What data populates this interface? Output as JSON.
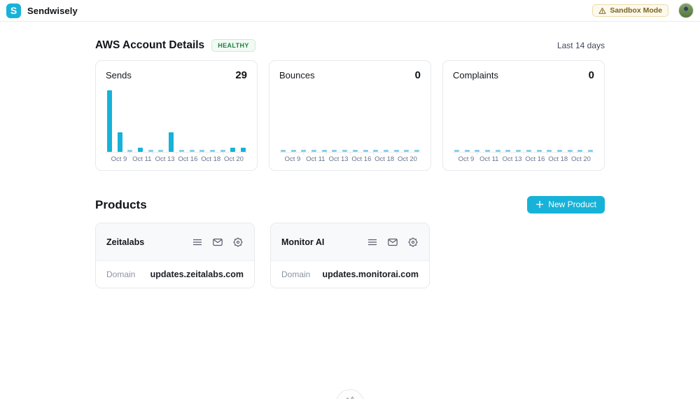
{
  "colors": {
    "accent": "#17b2d8",
    "bar_zero": "#87cfe9",
    "healthy_green": "#1d8040",
    "sandbox_amber": "#7c6420"
  },
  "header": {
    "logo_letter": "S",
    "app_name": "Sendwisely",
    "sandbox_badge_label": "Sandbox Mode"
  },
  "aws_section": {
    "title": "AWS Account Details",
    "status_badge": "HEALTHY",
    "range_label": "Last 14 days"
  },
  "chart_data": [
    {
      "type": "bar",
      "title": "Sends",
      "total_label": "29",
      "values": [
        16,
        5,
        0,
        1,
        0,
        0,
        5,
        0,
        0,
        0,
        0,
        0,
        1,
        1
      ],
      "x_tick_labels": [
        "Oct 9",
        "Oct 11",
        "Oct 13",
        "Oct 16",
        "Oct 18",
        "Oct 20"
      ],
      "ylim": [
        0,
        16
      ],
      "grid": false,
      "note": "14 daily bars; zero days drawn as short light-blue stubs"
    },
    {
      "type": "bar",
      "title": "Bounces",
      "total_label": "0",
      "values": [
        0,
        0,
        0,
        0,
        0,
        0,
        0,
        0,
        0,
        0,
        0,
        0,
        0,
        0
      ],
      "x_tick_labels": [
        "Oct 9",
        "Oct 11",
        "Oct 13",
        "Oct 16",
        "Oct 18",
        "Oct 20"
      ],
      "ylim": [
        0,
        16
      ],
      "grid": false
    },
    {
      "type": "bar",
      "title": "Complaints",
      "total_label": "0",
      "values": [
        0,
        0,
        0,
        0,
        0,
        0,
        0,
        0,
        0,
        0,
        0,
        0,
        0,
        0
      ],
      "x_tick_labels": [
        "Oct 9",
        "Oct 11",
        "Oct 13",
        "Oct 16",
        "Oct 18",
        "Oct 20"
      ],
      "ylim": [
        0,
        16
      ],
      "grid": false
    }
  ],
  "products_section": {
    "title": "Products",
    "new_product_label": "New Product",
    "cards": [
      {
        "name": "Zeitalabs",
        "domain_label": "Domain",
        "domain_value": "updates.zeitalabs.com"
      },
      {
        "name": "Monitor AI",
        "domain_label": "Domain",
        "domain_value": "updates.monitorai.com"
      }
    ]
  }
}
